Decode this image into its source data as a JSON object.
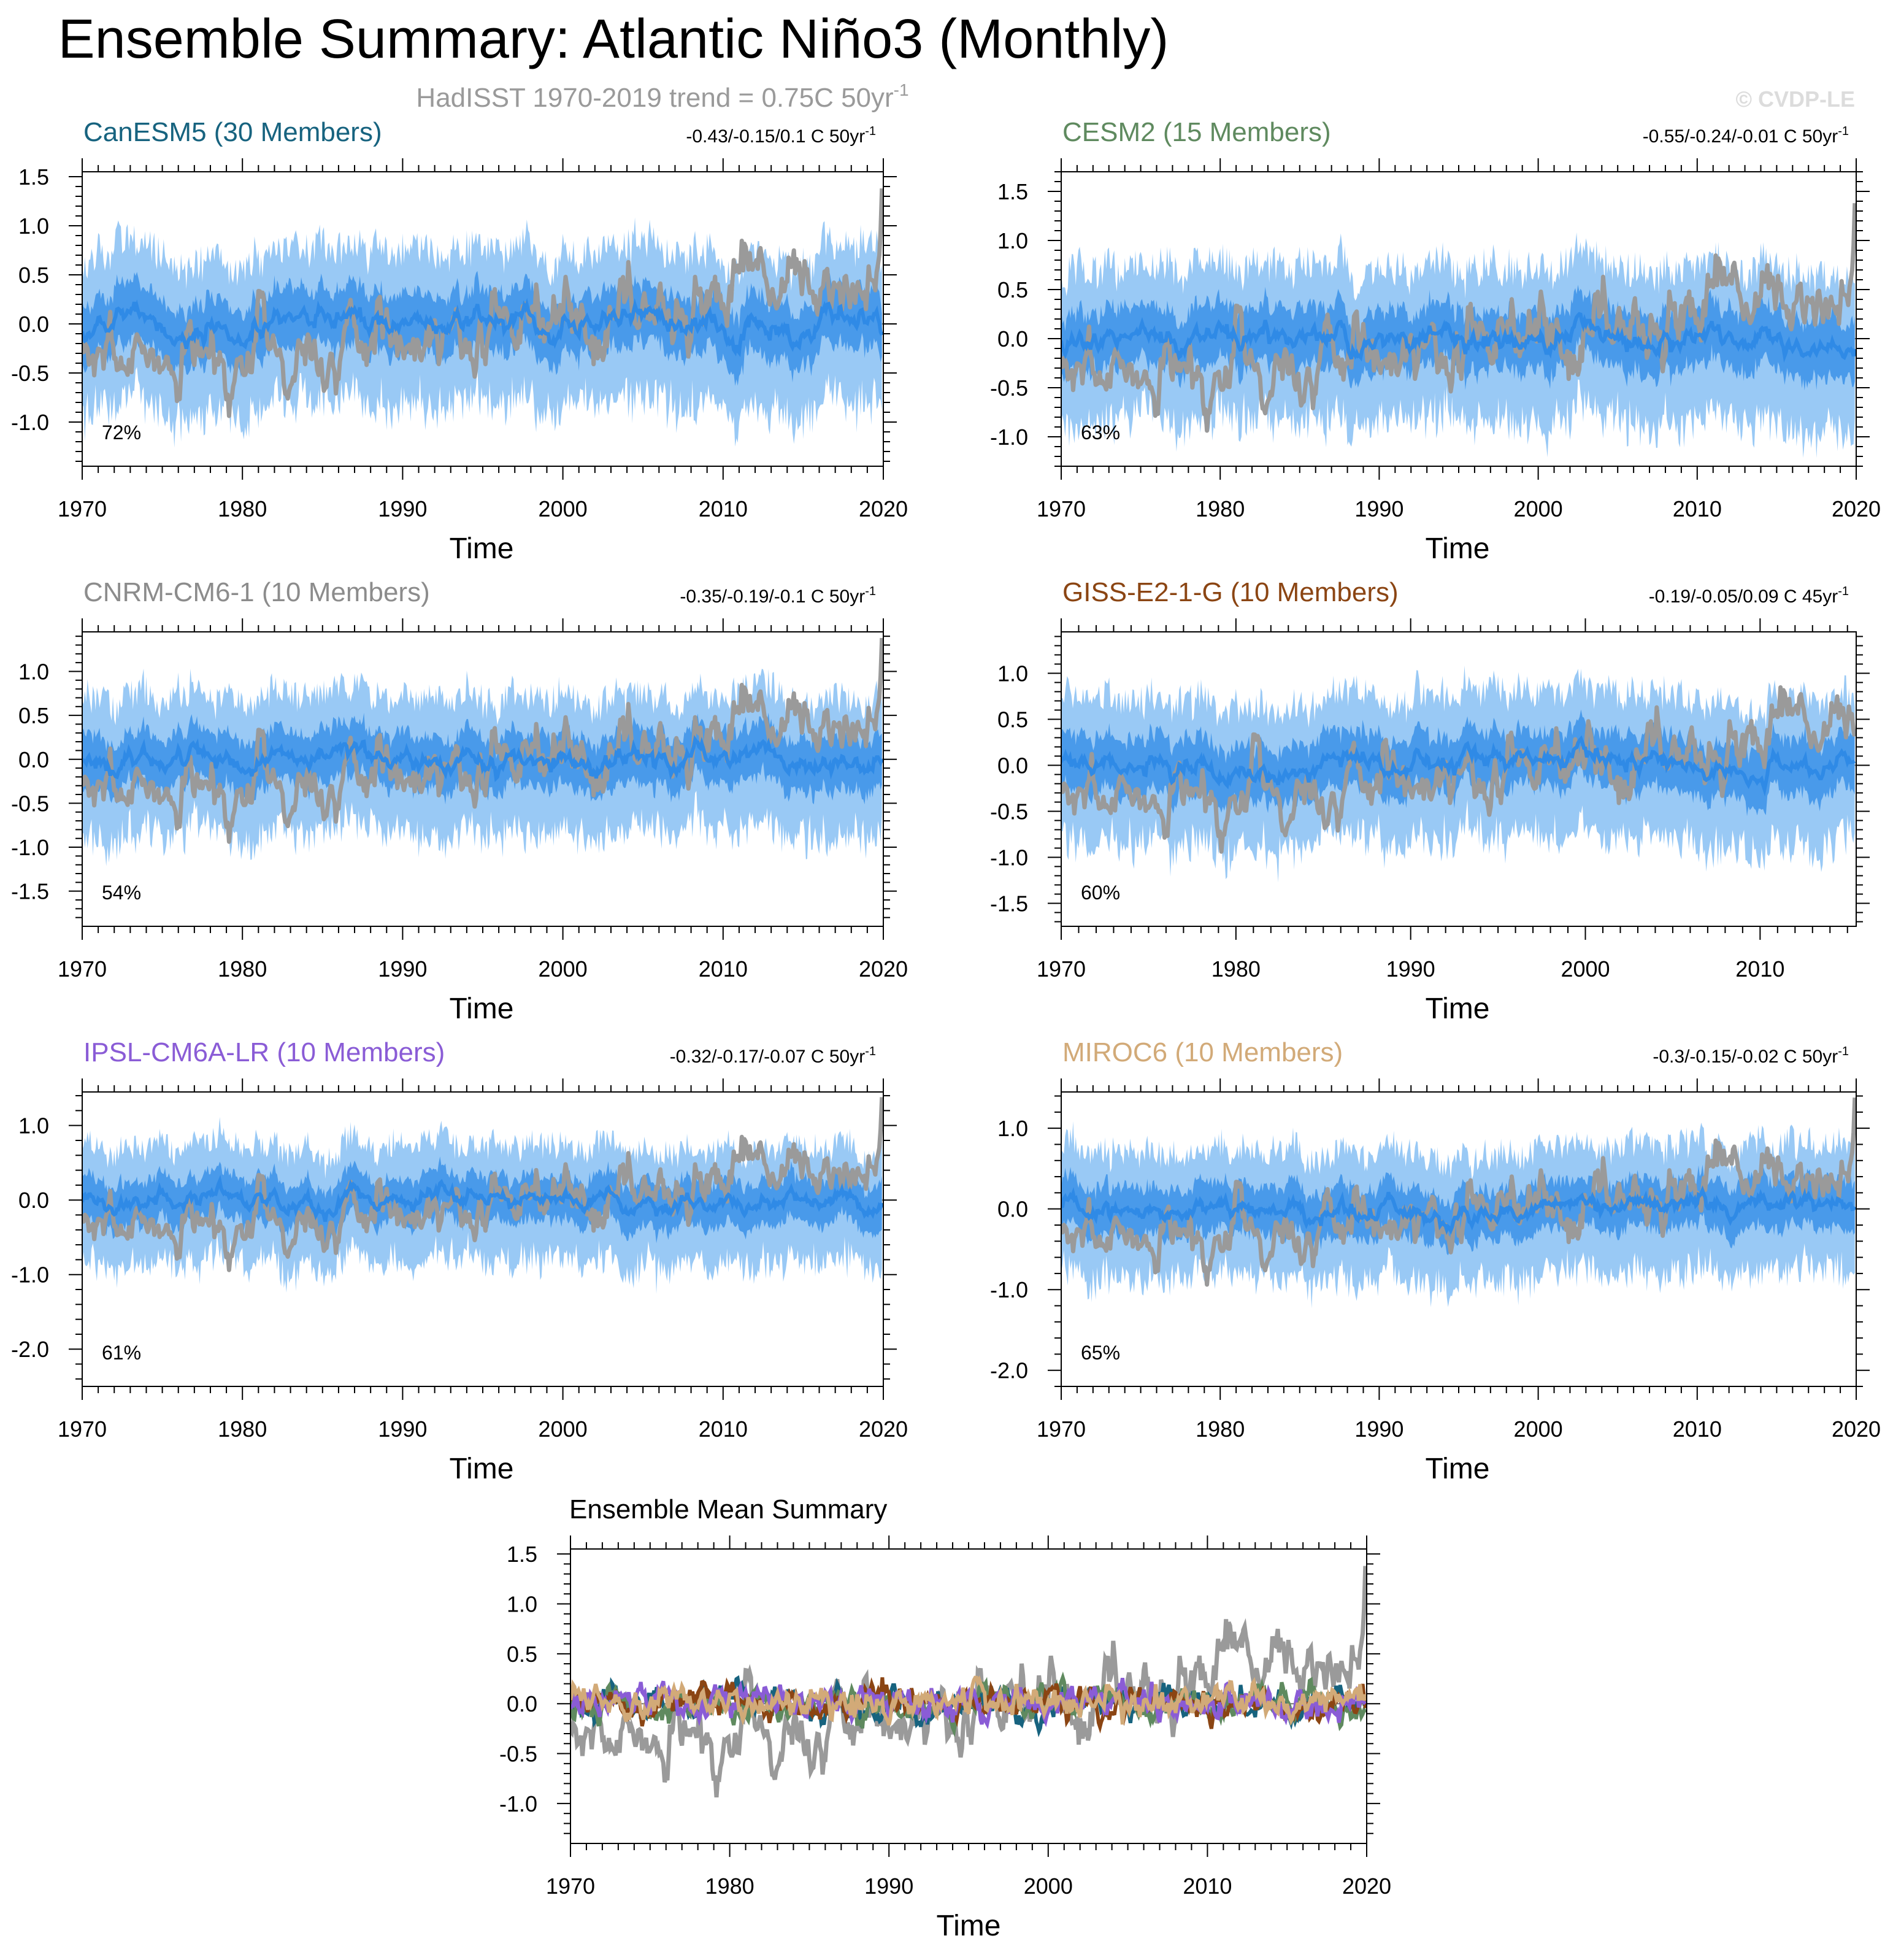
{
  "title": "Ensemble Summary: Atlantic Niño3 (Monthly)",
  "subtitle": {
    "text": "HadISST 1970-2019 trend = 0.75C 50yr",
    "superscript": "-1"
  },
  "watermark": "© CVDP-LE",
  "colors": {
    "observed": "#9a9a9a",
    "ensemble_mean": "#2f8ae6",
    "spread_inner": "#2f8ae6",
    "spread_outer": "#99c9f5",
    "axis": "#000000"
  },
  "chart_data": [
    {
      "type": "line",
      "model": "CanESM5",
      "title": "CanESM5 (30 Members)",
      "title_color": "#17637f",
      "trend_label": "-0.43/-0.15/0.1 C 50yr",
      "trend_superscript": "-1",
      "percent_label": "72%",
      "xlabel": "Time",
      "xlim": [
        1970,
        2020
      ],
      "xticks": [
        1970,
        1980,
        1990,
        2000,
        2010,
        2020
      ],
      "ylim": [
        -1.45,
        1.55
      ],
      "yticks": [
        1.5,
        1.0,
        0.5,
        0.0,
        -0.5,
        -1.0
      ],
      "ytick_labels": [
        "1.5",
        "1.0",
        "0.5",
        "0.0",
        "-0.5",
        "-1.0"
      ],
      "series": [
        {
          "name": "HadISST observed",
          "color": "#9a9a9a"
        },
        {
          "name": "ensemble mean",
          "color": "#2f8ae6"
        },
        {
          "name": "25th-75th percentile spread",
          "color": "#2f8ae6"
        },
        {
          "name": "min-max spread",
          "color": "#99c9f5"
        }
      ]
    },
    {
      "type": "line",
      "model": "CESM2",
      "title": "CESM2 (15 Members)",
      "title_color": "#5f8a5f",
      "trend_label": "-0.55/-0.24/-0.01 C 50yr",
      "trend_superscript": "-1",
      "percent_label": "63%",
      "xlabel": "Time",
      "xlim": [
        1970,
        2020
      ],
      "xticks": [
        1970,
        1980,
        1990,
        2000,
        2010,
        2020
      ],
      "ylim": [
        -1.3,
        1.7
      ],
      "yticks": [
        1.5,
        1.0,
        0.5,
        0.0,
        -0.5,
        -1.0
      ],
      "ytick_labels": [
        "1.5",
        "1.0",
        "0.5",
        "0.0",
        "-0.5",
        "-1.0"
      ],
      "series": [
        {
          "name": "HadISST observed",
          "color": "#9a9a9a"
        },
        {
          "name": "ensemble mean",
          "color": "#2f8ae6"
        },
        {
          "name": "25th-75th percentile spread",
          "color": "#2f8ae6"
        },
        {
          "name": "min-max spread",
          "color": "#99c9f5"
        }
      ]
    },
    {
      "type": "line",
      "model": "CNRM-CM6-1",
      "title": "CNRM-CM6-1 (10 Members)",
      "title_color": "#8c8c8c",
      "trend_label": "-0.35/-0.19/-0.1 C 50yr",
      "trend_superscript": "-1",
      "percent_label": "54%",
      "xlabel": "Time",
      "xlim": [
        1970,
        2020
      ],
      "xticks": [
        1970,
        1980,
        1990,
        2000,
        2010,
        2020
      ],
      "ylim": [
        -1.9,
        1.45
      ],
      "yticks": [
        1.0,
        0.5,
        0.0,
        -0.5,
        -1.0,
        -1.5
      ],
      "ytick_labels": [
        "1.0",
        "0.5",
        "0.0",
        "-0.5",
        "-1.0",
        "-1.5"
      ],
      "series": [
        {
          "name": "HadISST observed",
          "color": "#9a9a9a"
        },
        {
          "name": "ensemble mean",
          "color": "#2f8ae6"
        },
        {
          "name": "25th-75th percentile spread",
          "color": "#2f8ae6"
        },
        {
          "name": "min-max spread",
          "color": "#99c9f5"
        }
      ]
    },
    {
      "type": "line",
      "model": "GISS-E2-1-G",
      "title": "GISS-E2-1-G (10 Members)",
      "title_color": "#8b4513",
      "trend_label": "-0.19/-0.05/0.09 C 45yr",
      "trend_superscript": "-1",
      "percent_label": "60%",
      "xlabel": "Time",
      "xlim": [
        1970,
        2015.5
      ],
      "xticks": [
        1970,
        1980,
        1990,
        2000,
        2010
      ],
      "ylim": [
        -1.75,
        1.45
      ],
      "yticks": [
        1.0,
        0.5,
        0.0,
        -0.5,
        -1.0,
        -1.5
      ],
      "ytick_labels": [
        "1.0",
        "0.5",
        "0.0",
        "-0.5",
        "-1.0",
        "-1.5"
      ],
      "series": [
        {
          "name": "HadISST observed",
          "color": "#9a9a9a"
        },
        {
          "name": "ensemble mean",
          "color": "#2f8ae6"
        },
        {
          "name": "25th-75th percentile spread",
          "color": "#2f8ae6"
        },
        {
          "name": "min-max spread",
          "color": "#99c9f5"
        }
      ]
    },
    {
      "type": "line",
      "model": "IPSL-CM6A-LR",
      "title": "IPSL-CM6A-LR (10 Members)",
      "title_color": "#8a5cd6",
      "trend_label": "-0.32/-0.17/-0.07 C 50yr",
      "trend_superscript": "-1",
      "percent_label": "61%",
      "xlabel": "Time",
      "xlim": [
        1970,
        2020
      ],
      "xticks": [
        1970,
        1980,
        1990,
        2000,
        2010,
        2020
      ],
      "ylim": [
        -2.5,
        1.45
      ],
      "yticks": [
        1.0,
        0.0,
        -1.0,
        -2.0
      ],
      "ytick_labels": [
        "1.0",
        "0.0",
        "-1.0",
        "-2.0"
      ],
      "series": [
        {
          "name": "HadISST observed",
          "color": "#9a9a9a"
        },
        {
          "name": "ensemble mean",
          "color": "#2f8ae6"
        },
        {
          "name": "25th-75th percentile spread",
          "color": "#2f8ae6"
        },
        {
          "name": "min-max spread",
          "color": "#99c9f5"
        }
      ]
    },
    {
      "type": "line",
      "model": "MIROC6",
      "title": "MIROC6 (10 Members)",
      "title_color": "#d2aa78",
      "trend_label": "-0.3/-0.15/-0.02 C 50yr",
      "trend_superscript": "-1",
      "percent_label": "65%",
      "xlabel": "Time",
      "xlim": [
        1970,
        2020
      ],
      "xticks": [
        1970,
        1980,
        1990,
        2000,
        2010,
        2020
      ],
      "ylim": [
        -2.2,
        1.45
      ],
      "yticks": [
        1.0,
        0.0,
        -1.0,
        -2.0
      ],
      "ytick_labels": [
        "1.0",
        "0.0",
        "-1.0",
        "-2.0"
      ],
      "series": [
        {
          "name": "HadISST observed",
          "color": "#9a9a9a"
        },
        {
          "name": "ensemble mean",
          "color": "#2f8ae6"
        },
        {
          "name": "25th-75th percentile spread",
          "color": "#2f8ae6"
        },
        {
          "name": "min-max spread",
          "color": "#99c9f5"
        }
      ]
    },
    {
      "type": "line",
      "model": "summary",
      "title": "Ensemble Mean Summary",
      "title_color": "#000000",
      "xlabel": "Time",
      "xlim": [
        1970,
        2020
      ],
      "xticks": [
        1970,
        1980,
        1990,
        2000,
        2010,
        2020
      ],
      "ylim": [
        -1.4,
        1.55
      ],
      "yticks": [
        1.5,
        1.0,
        0.5,
        0.0,
        -0.5,
        -1.0
      ],
      "ytick_labels": [
        "1.5",
        "1.0",
        "0.5",
        "0.0",
        "-0.5",
        "-1.0"
      ],
      "series": [
        {
          "name": "HadISST",
          "color": "#9a9a9a"
        },
        {
          "name": "CanESM5",
          "color": "#17637f"
        },
        {
          "name": "CESM2",
          "color": "#5f8a5f"
        },
        {
          "name": "GISS-E2-1-G",
          "color": "#8b4513"
        },
        {
          "name": "IPSL-CM6A-LR",
          "color": "#8a5cd6"
        },
        {
          "name": "MIROC6",
          "color": "#d2aa78"
        }
      ]
    }
  ]
}
